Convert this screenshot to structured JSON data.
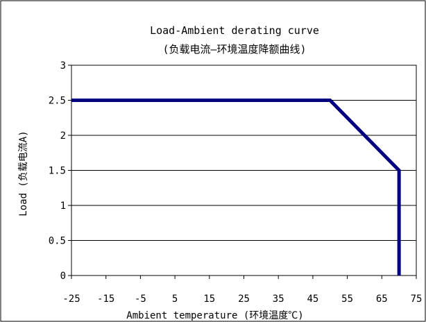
{
  "chart_data": {
    "type": "line",
    "title": "Load-Ambient derating curve",
    "subtitle": "(负载电流—环境温度降额曲线)",
    "xlabel": "Ambient temperature (环境温度℃)",
    "ylabel": "Load (负载电流A)",
    "xlim": [
      -25,
      75
    ],
    "ylim": [
      0,
      3
    ],
    "x_ticks": [
      "-25",
      "-15",
      "-5",
      "5",
      "15",
      "25",
      "35",
      "45",
      "55",
      "65",
      "75"
    ],
    "y_ticks": [
      "0",
      "0.5",
      "1",
      "1.5",
      "2",
      "2.5",
      "3"
    ],
    "grid": "horizontal",
    "series": [
      {
        "x": [
          -25,
          50,
          70,
          70
        ],
        "y": [
          2.5,
          2.5,
          1.5,
          0
        ],
        "color": "#000080"
      }
    ]
  }
}
